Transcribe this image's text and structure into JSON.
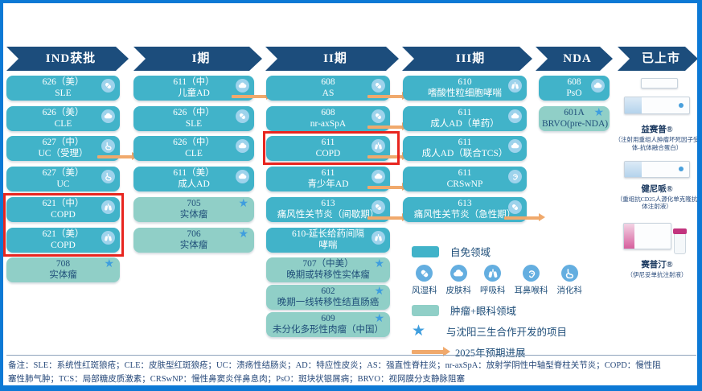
{
  "colors": {
    "autoimmune_card": "#41b3c9",
    "oncology_card": "#90cfc7",
    "header_navy": "#1c4d7c",
    "progress_arrow": "#f0a96c",
    "partner_star": "#3f9ede",
    "highlight_red": "#e8251f",
    "frame_blue": "#0c79d5"
  },
  "stages": [
    {
      "key": "ind",
      "label": "IND获批",
      "cards": [
        {
          "line1": "626（美）",
          "line2": "SLE",
          "icon": "rheumatology"
        },
        {
          "line1": "626（美）",
          "line2": "CLE",
          "icon": "dermatology"
        },
        {
          "line1": "627（中）",
          "line2": "UC（受理）",
          "icon": "digestive",
          "arrow": true
        },
        {
          "line1": "627（美）",
          "line2": "UC",
          "icon": "digestive"
        },
        {
          "line1": "621（中）",
          "line2": "COPD",
          "icon": "respiratory",
          "highlighted": true
        },
        {
          "line1": "621（美）",
          "line2": "COPD",
          "icon": "respiratory",
          "highlighted": true
        },
        {
          "line1": "708",
          "line2": "实体瘤",
          "type": "oncology",
          "star": true
        }
      ]
    },
    {
      "key": "phase1",
      "label": "I期",
      "cards": [
        {
          "line1": "611（中）",
          "line2": "儿童AD",
          "icon": "dermatology",
          "arrow": true
        },
        {
          "line1": "626（中）",
          "line2": "SLE",
          "icon": "rheumatology"
        },
        {
          "line1": "626（中）",
          "line2": "CLE",
          "icon": "dermatology"
        },
        {
          "line1": "611（美）",
          "line2": "成人AD",
          "icon": "dermatology"
        },
        {
          "line1": "705",
          "line2": "实体瘤",
          "type": "oncology",
          "star": true
        },
        {
          "line1": "706",
          "line2": "实体瘤",
          "type": "oncology",
          "star": true
        }
      ]
    },
    {
      "key": "phase2",
      "label": "II期",
      "cards": [
        {
          "line1": "608",
          "line2": "AS",
          "icon": "rheumatology",
          "arrow": true
        },
        {
          "line1": "608",
          "line2": "nr-axSpA",
          "icon": "rheumatology",
          "arrow": true
        },
        {
          "line1": "611",
          "line2": "COPD",
          "icon": "respiratory",
          "arrow": true,
          "highlighted": true
        },
        {
          "line1": "611",
          "line2": "青少年AD",
          "icon": "dermatology",
          "arrow": true
        },
        {
          "line1": "613",
          "line2": "痛风性关节炎（间歇期）",
          "icon": "rheumatology",
          "arrow": true
        },
        {
          "line1": "610-延长给药间隔",
          "line2": "哮喘",
          "icon": "respiratory"
        },
        {
          "line1": "707（中美）",
          "line2": "晚期或转移性实体瘤",
          "type": "oncology",
          "star": true
        },
        {
          "line1": "602",
          "line2": "晚期一线转移性结直肠癌",
          "type": "oncology",
          "star": true
        },
        {
          "line1": "609",
          "line2": "未分化多形性肉瘤（中国）",
          "type": "oncology",
          "star": true
        }
      ]
    },
    {
      "key": "phase3",
      "label": "III期",
      "cards": [
        {
          "line1": "610",
          "line2": "嗜酸性粒细胞哮喘",
          "icon": "respiratory"
        },
        {
          "line1": "611",
          "line2": "成人AD（单药）",
          "icon": "dermatology"
        },
        {
          "line1": "611",
          "line2": "成人AD（联合TCS）",
          "icon": "dermatology"
        },
        {
          "line1": "611",
          "line2": "CRSwNP",
          "icon": "ent"
        },
        {
          "line1": "613",
          "line2": "痛风性关节炎（急性期）",
          "icon": "rheumatology",
          "arrow": true
        }
      ]
    },
    {
      "key": "nda",
      "label": "NDA",
      "cards": [
        {
          "line1": "608",
          "line2": "PsO",
          "icon": "dermatology"
        },
        {
          "line1": "601A",
          "line2": "BRVO(pre-NDA)",
          "type": "oncology",
          "star": true
        }
      ]
    },
    {
      "key": "marketed",
      "label": "已上市",
      "cards": []
    }
  ],
  "legend": {
    "autoimmune_label": "自免领域",
    "oncology_label": "肿瘤+眼科领域",
    "departments": [
      {
        "icon": "rheumatology",
        "label": "风湿科"
      },
      {
        "icon": "dermatology",
        "label": "皮肤科"
      },
      {
        "icon": "respiratory",
        "label": "呼吸科"
      },
      {
        "icon": "ent",
        "label": "耳鼻喉科"
      },
      {
        "icon": "digestive",
        "label": "消化科"
      }
    ],
    "star_label": "与沈阳三生合作开发的项目",
    "arrow_label": "2025年预期进展"
  },
  "marketed_products": [
    {
      "name": "益赛普®",
      "desc": "（注射用重组人肿瘤坏死因子受体-抗体融合蛋白）"
    },
    {
      "name": "健尼哌®",
      "desc": "（重组抗CD25人源化单克隆抗体注射液）"
    },
    {
      "name": "赛普汀®",
      "desc": "（伊尼妥单抗注射液）"
    }
  ],
  "footnote": {
    "line1": "备注：SLE：系统性红斑狼疮；CLE：皮肤型红斑狼疮；UC：溃疡性结肠炎；AD：特应性皮炎；AS：强直性脊柱炎；nr-axSpA：放射学阴性中轴型脊柱关节炎；COPD：慢性阻",
    "line2": "塞性肺气肿；TCS：局部糖皮质激素；CRSwNP：慢性鼻窦炎伴鼻息肉；PsO：斑块状银屑病；BRVO：视网膜分支静脉阻塞"
  }
}
